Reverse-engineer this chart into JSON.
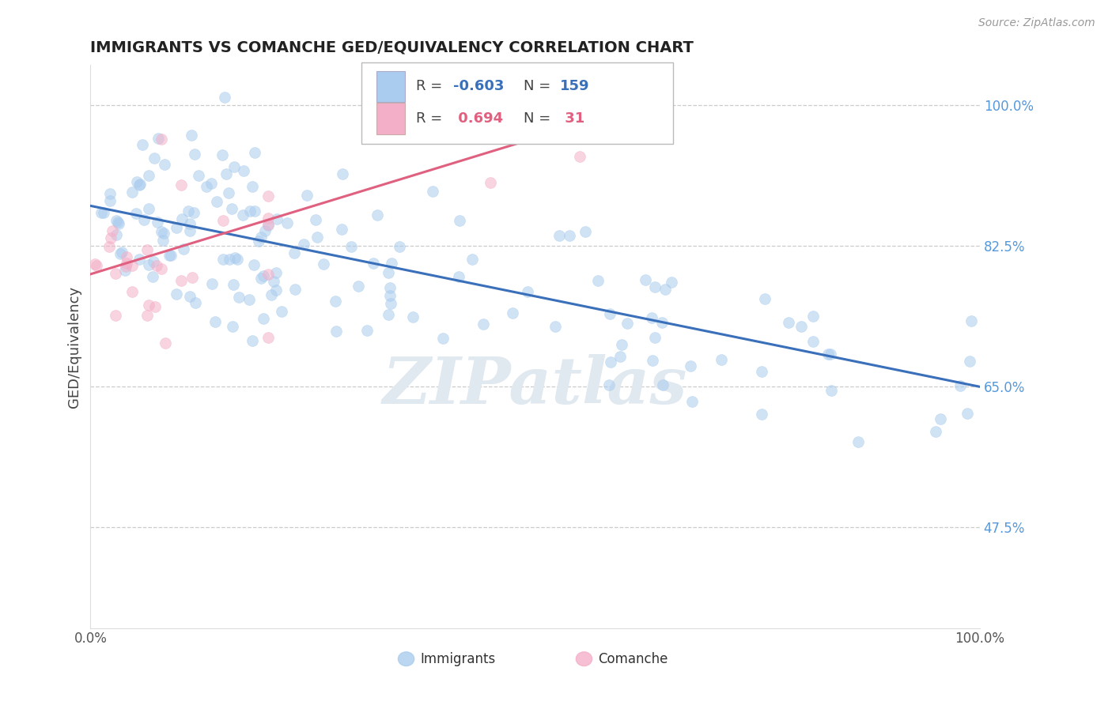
{
  "title": "IMMIGRANTS VS COMANCHE GED/EQUIVALENCY CORRELATION CHART",
  "ylabel": "GED/Equivalency",
  "source_text": "Source: ZipAtlas.com",
  "watermark": "ZIPatlas",
  "xlim": [
    0.0,
    1.0
  ],
  "ylim": [
    0.35,
    1.05
  ],
  "yticks": [
    0.475,
    0.65,
    0.825,
    1.0
  ],
  "ytick_labels": [
    "47.5%",
    "65.0%",
    "82.5%",
    "100.0%"
  ],
  "xtick_labels": [
    "0.0%",
    "100.0%"
  ],
  "R_blue": -0.603,
  "N_blue": 159,
  "R_pink": 0.694,
  "N_pink": 31,
  "blue_line_x0": 0.0,
  "blue_line_y0": 0.875,
  "blue_line_x1": 1.0,
  "blue_line_y1": 0.65,
  "pink_line_x0": 0.0,
  "pink_line_y0": 0.79,
  "pink_line_x1": 0.65,
  "pink_line_y1": 1.01,
  "blue_line_color": "#3a6fba",
  "pink_line_color": "#e06080",
  "blue_scatter_color": "#aaccee",
  "pink_scatter_color": "#f4afc8",
  "bg_color": "#ffffff",
  "grid_color": "#cccccc",
  "title_color": "#222222",
  "watermark_color": "#e0e8f0",
  "marker_size": 100,
  "marker_alpha": 0.55,
  "ytick_color": "#5599dd",
  "xtick_color": "#555555"
}
